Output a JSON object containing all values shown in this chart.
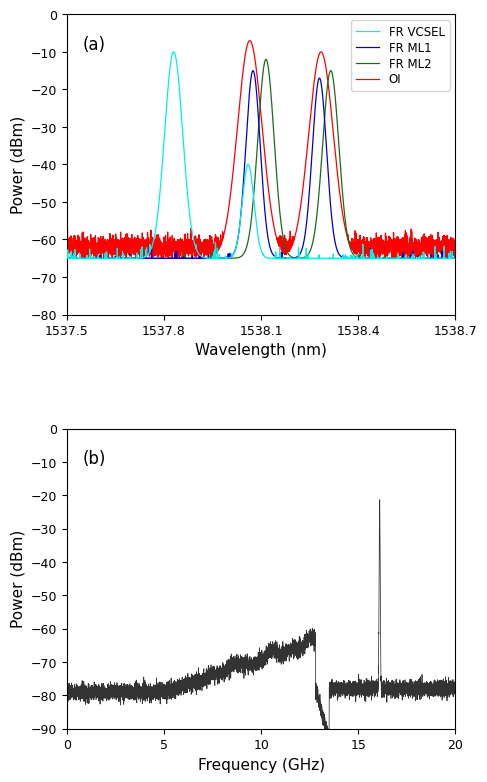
{
  "fig_width": 4.74,
  "fig_height": 7.85,
  "dpi": 100,
  "panel_a": {
    "label": "(a)",
    "xlabel": "Wavelength (nm)",
    "ylabel": "Power (dBm)",
    "xlim": [
      1537.5,
      1538.7
    ],
    "ylim": [
      -80,
      0
    ],
    "yticks": [
      0,
      -10,
      -20,
      -30,
      -40,
      -50,
      -60,
      -70,
      -80
    ],
    "xticks": [
      1537.5,
      1537.8,
      1538.1,
      1538.4,
      1538.7
    ],
    "legend_order": [
      "FR VCSEL",
      "FR ML1",
      "FR ML2",
      "OI"
    ],
    "colors": {
      "FR VCSEL": "#00EEEE",
      "FR ML1": "#0000CD",
      "FR ML2": "#1A6B1A",
      "OI": "#FF0000"
    }
  },
  "panel_b": {
    "label": "(b)",
    "xlabel": "Frequency (GHz)",
    "ylabel": "Power (dBm)",
    "xlim": [
      0,
      20
    ],
    "ylim": [
      -90,
      0
    ],
    "yticks": [
      0,
      -10,
      -20,
      -30,
      -40,
      -50,
      -60,
      -70,
      -80,
      -90
    ],
    "xticks": [
      0,
      5,
      10,
      15,
      20
    ],
    "color": "#333333"
  }
}
